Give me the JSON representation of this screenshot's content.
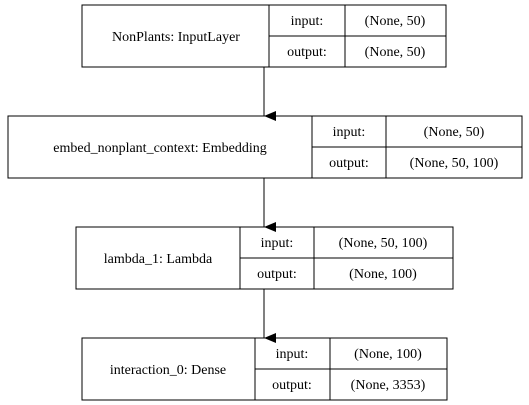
{
  "layers": [
    {
      "name": "NonPlants: InputLayer",
      "input_label": "input:",
      "output_label": "output:",
      "input_shape": "(None, 50)",
      "output_shape": "(None, 50)"
    },
    {
      "name": "embed_nonplant_context: Embedding",
      "input_label": "input:",
      "output_label": "output:",
      "input_shape": "(None, 50)",
      "output_shape": "(None, 50, 100)"
    },
    {
      "name": "lambda_1: Lambda",
      "input_label": "input:",
      "output_label": "output:",
      "input_shape": "(None, 50, 100)",
      "output_shape": "(None, 100)"
    },
    {
      "name": "interaction_0: Dense",
      "input_label": "input:",
      "output_label": "output:",
      "input_shape": "(None, 100)",
      "output_shape": "(None, 3353)"
    }
  ]
}
